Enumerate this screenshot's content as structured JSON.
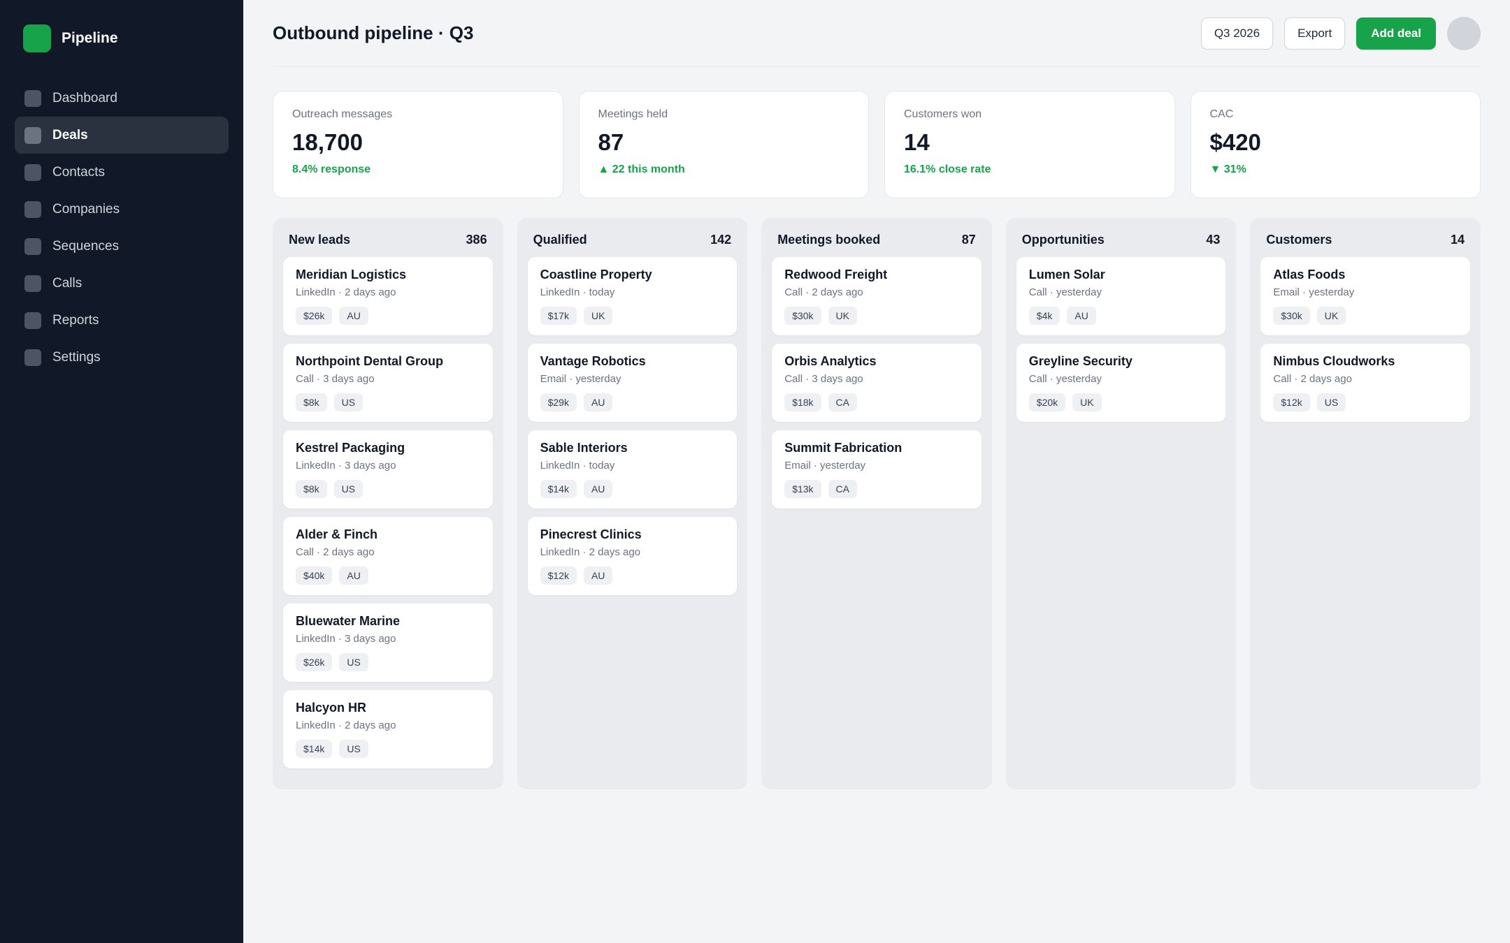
{
  "sidebar": {
    "brand": "Pipeline",
    "items": [
      {
        "label": "Dashboard"
      },
      {
        "label": "Deals"
      },
      {
        "label": "Contacts"
      },
      {
        "label": "Companies"
      },
      {
        "label": "Sequences"
      },
      {
        "label": "Calls"
      },
      {
        "label": "Reports"
      },
      {
        "label": "Settings"
      }
    ],
    "active": "Deals"
  },
  "header": {
    "title": "Outbound pipeline · Q3",
    "period_label": "Q3 2026",
    "export_label": "Export",
    "add_label": "Add deal"
  },
  "kpis": [
    {
      "label": "Outreach messages",
      "value": "18,700",
      "delta": "8.4% response"
    },
    {
      "label": "Meetings held",
      "value": "87",
      "delta": "▲ 22 this month"
    },
    {
      "label": "Customers won",
      "value": "14",
      "delta": "16.1% close rate"
    },
    {
      "label": "CAC",
      "value": "$420",
      "delta": "▼ 31%"
    }
  ],
  "columns": [
    {
      "title": "New leads",
      "count": "386",
      "cards": [
        {
          "name": "Meridian Logistics",
          "meta": "LinkedIn · 2 days ago",
          "value": "$26k",
          "region": "AU"
        },
        {
          "name": "Northpoint Dental Group",
          "meta": "Call · 3 days ago",
          "value": "$8k",
          "region": "US"
        },
        {
          "name": "Kestrel Packaging",
          "meta": "LinkedIn · 3 days ago",
          "value": "$8k",
          "region": "US"
        },
        {
          "name": "Alder & Finch",
          "meta": "Call · 2 days ago",
          "value": "$40k",
          "region": "AU"
        },
        {
          "name": "Bluewater Marine",
          "meta": "LinkedIn · 3 days ago",
          "value": "$26k",
          "region": "US"
        },
        {
          "name": "Halcyon HR",
          "meta": "LinkedIn · 2 days ago",
          "value": "$14k",
          "region": "US"
        }
      ]
    },
    {
      "title": "Qualified",
      "count": "142",
      "cards": [
        {
          "name": "Coastline Property",
          "meta": "LinkedIn · today",
          "value": "$17k",
          "region": "UK"
        },
        {
          "name": "Vantage Robotics",
          "meta": "Email · yesterday",
          "value": "$29k",
          "region": "AU"
        },
        {
          "name": "Sable Interiors",
          "meta": "LinkedIn · today",
          "value": "$14k",
          "region": "AU"
        },
        {
          "name": "Pinecrest Clinics",
          "meta": "LinkedIn · 2 days ago",
          "value": "$12k",
          "region": "AU"
        }
      ]
    },
    {
      "title": "Meetings booked",
      "count": "87",
      "cards": [
        {
          "name": "Redwood Freight",
          "meta": "Call · 2 days ago",
          "value": "$30k",
          "region": "UK"
        },
        {
          "name": "Orbis Analytics",
          "meta": "Call · 3 days ago",
          "value": "$18k",
          "region": "CA"
        },
        {
          "name": "Summit Fabrication",
          "meta": "Email · yesterday",
          "value": "$13k",
          "region": "CA"
        }
      ]
    },
    {
      "title": "Opportunities",
      "count": "43",
      "cards": [
        {
          "name": "Lumen Solar",
          "meta": "Call · yesterday",
          "value": "$4k",
          "region": "AU"
        },
        {
          "name": "Greyline Security",
          "meta": "Call · yesterday",
          "value": "$20k",
          "region": "UK"
        }
      ]
    },
    {
      "title": "Customers",
      "count": "14",
      "cards": [
        {
          "name": "Atlas Foods",
          "meta": "Email · yesterday",
          "value": "$30k",
          "region": "UK"
        },
        {
          "name": "Nimbus Cloudworks",
          "meta": "Call · 2 days ago",
          "value": "$12k",
          "region": "US"
        }
      ]
    }
  ]
}
